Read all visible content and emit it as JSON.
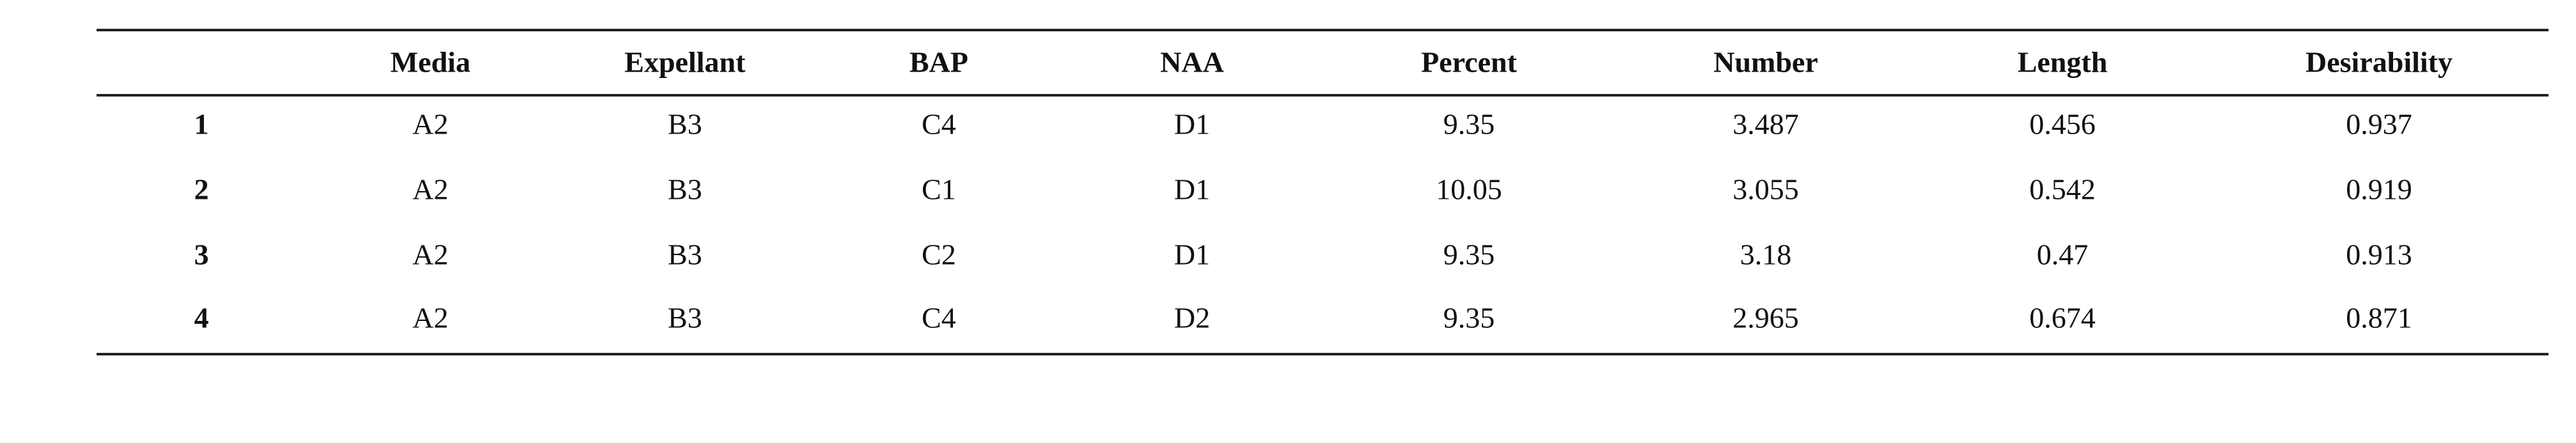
{
  "table": {
    "columns": [
      "Media",
      "Expellant",
      "BAP",
      "NAA",
      "Percent",
      "Number",
      "Length",
      "Desirability"
    ],
    "rows": [
      {
        "label": "1",
        "cells": [
          "A2",
          "B3",
          "C4",
          "D1",
          9.35,
          3.487,
          0.456,
          0.937
        ]
      },
      {
        "label": "2",
        "cells": [
          "A2",
          "B3",
          "C1",
          "D1",
          10.05,
          3.055,
          0.542,
          0.919
        ]
      },
      {
        "label": "3",
        "cells": [
          "A2",
          "B3",
          "C2",
          "D1",
          9.35,
          3.18,
          0.47,
          0.913
        ]
      },
      {
        "label": "4",
        "cells": [
          "A2",
          "B3",
          "C4",
          "D2",
          9.35,
          2.965,
          0.674,
          0.871
        ]
      }
    ]
  }
}
